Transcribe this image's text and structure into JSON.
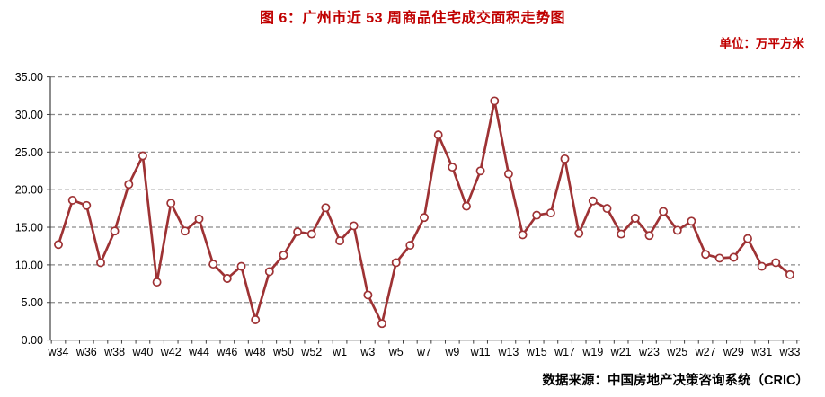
{
  "title": "图 6：广州市近 53 周商品住宅成交面积走势图",
  "unit_label": "单位：万平方米",
  "source_label": "数据来源：中国房地产决策咨询系统（CRIC）",
  "colors": {
    "title_red": "#C00000",
    "line_red": "#9E3234",
    "marker_fill": "#FFFFFF",
    "gridline_gray": "#8A8A8A",
    "axis_gray": "#404040",
    "tick_text": "#000000"
  },
  "chart_data": {
    "type": "line",
    "title": "图 6：广州市近 53 周商品住宅成交面积走势图",
    "unit": "万平方米",
    "categories": [
      "w34",
      "w35",
      "w36",
      "w37",
      "w38",
      "w39",
      "w40",
      "w41",
      "w42",
      "w43",
      "w44",
      "w45",
      "w46",
      "w47",
      "w48",
      "w49",
      "w50",
      "w51",
      "w52",
      "w53",
      "w1",
      "w2",
      "w3",
      "w4",
      "w5",
      "w6",
      "w7",
      "w8",
      "w9",
      "w10",
      "w11",
      "w12",
      "w13",
      "w14",
      "w15",
      "w16",
      "w17",
      "w18",
      "w19",
      "w20",
      "w21",
      "w22",
      "w23",
      "w24",
      "w25",
      "w26",
      "w27",
      "w28",
      "w29",
      "w30",
      "w31",
      "w32",
      "w33"
    ],
    "values": [
      12.7,
      18.6,
      17.9,
      10.3,
      14.5,
      20.7,
      24.5,
      7.7,
      18.2,
      14.5,
      16.1,
      10.1,
      8.2,
      9.8,
      2.7,
      9.1,
      11.3,
      14.4,
      14.1,
      17.6,
      13.2,
      15.2,
      6.0,
      2.2,
      10.3,
      12.6,
      16.3,
      27.3,
      23.0,
      17.8,
      22.5,
      31.8,
      22.1,
      14.0,
      16.6,
      16.9,
      24.1,
      14.2,
      18.5,
      17.5,
      14.1,
      16.2,
      13.9,
      17.1,
      14.6,
      15.8,
      11.4,
      10.9,
      11.0,
      13.5,
      9.8,
      10.3,
      8.7
    ],
    "x_tick_labels": [
      "w34",
      "w36",
      "w38",
      "w40",
      "w42",
      "w44",
      "w46",
      "w48",
      "w50",
      "w52",
      "w1",
      "w3",
      "w5",
      "w7",
      "w9",
      "w11",
      "w13",
      "w15",
      "w17",
      "w19",
      "w21",
      "w23",
      "w25",
      "w27",
      "w29",
      "w31",
      "w33"
    ],
    "y_ticks": [
      "35.00",
      "30.00",
      "25.00",
      "20.00",
      "15.00",
      "10.00",
      "5.00",
      "0.00"
    ],
    "y_tick_values": [
      35,
      30,
      25,
      20,
      15,
      10,
      5,
      0
    ],
    "ylim": [
      0,
      35
    ],
    "grid": "horizontal-dashed",
    "legend": "none",
    "marker": "open-circle",
    "xlabel": "",
    "ylabel": ""
  }
}
